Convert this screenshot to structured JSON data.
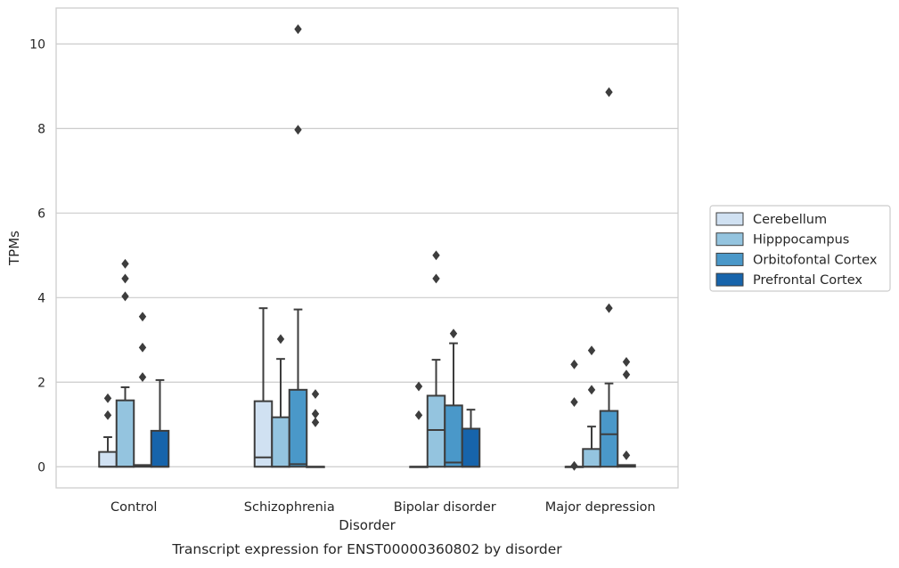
{
  "chart_data": {
    "type": "box",
    "xlabel": "Disorder",
    "ylabel": "TPMs",
    "caption": "Transcript expression for ENST00000360802 by disorder",
    "categories": [
      "Control",
      "Schizophrenia",
      "Bipolar disorder",
      "Major depression"
    ],
    "ylim": [
      -0.5,
      10.85
    ],
    "yticks": [
      0,
      2,
      4,
      6,
      8,
      10
    ],
    "grid": true,
    "legend_position": "right",
    "series": [
      {
        "name": "Cerebellum",
        "color": "#d0e1f2",
        "boxes": [
          {
            "whisker_low": 0,
            "q1": 0,
            "median": 0.0,
            "q3": 0.35,
            "whisker_high": 0.7,
            "outliers": [
              1.22,
              1.62
            ]
          },
          {
            "whisker_low": 0,
            "q1": 0,
            "median": 0.22,
            "q3": 1.55,
            "whisker_high": 3.75,
            "outliers": []
          },
          {
            "whisker_low": 0,
            "q1": 0,
            "median": 0.0,
            "q3": 0.0,
            "whisker_high": 0,
            "outliers": [
              1.22,
              1.9
            ]
          },
          {
            "whisker_low": 0,
            "q1": 0,
            "median": 0.0,
            "q3": 0.0,
            "whisker_high": 0,
            "outliers": [
              0.02,
              1.53,
              2.42
            ]
          }
        ]
      },
      {
        "name": "Hipppocampus",
        "color": "#94c4df",
        "boxes": [
          {
            "whisker_low": 0,
            "q1": 0,
            "median": 0.0,
            "q3": 1.57,
            "whisker_high": 1.88,
            "outliers": [
              4.03,
              4.45,
              4.8
            ]
          },
          {
            "whisker_low": 0,
            "q1": 0,
            "median": 0.0,
            "q3": 1.17,
            "whisker_high": 2.55,
            "outliers": [
              3.02
            ]
          },
          {
            "whisker_low": 0,
            "q1": 0,
            "median": 0.87,
            "q3": 1.68,
            "whisker_high": 2.53,
            "outliers": [
              4.45,
              5.0
            ]
          },
          {
            "whisker_low": 0,
            "q1": 0,
            "median": 0.0,
            "q3": 0.42,
            "whisker_high": 0.95,
            "outliers": [
              1.82,
              2.75
            ]
          }
        ]
      },
      {
        "name": "Orbitofontal Cortex",
        "color": "#4a98c9",
        "boxes": [
          {
            "whisker_low": 0,
            "q1": 0,
            "median": 0.02,
            "q3": 0.04,
            "whisker_high": 0.04,
            "outliers": [
              2.12,
              2.82,
              3.55
            ]
          },
          {
            "whisker_low": 0,
            "q1": 0,
            "median": 0.06,
            "q3": 1.82,
            "whisker_high": 3.72,
            "outliers": [
              7.97,
              10.35
            ]
          },
          {
            "whisker_low": 0,
            "q1": 0,
            "median": 0.1,
            "q3": 1.45,
            "whisker_high": 2.92,
            "outliers": [
              3.15
            ]
          },
          {
            "whisker_low": 0,
            "q1": 0,
            "median": 0.77,
            "q3": 1.32,
            "whisker_high": 1.97,
            "outliers": [
              3.75,
              8.86
            ]
          }
        ]
      },
      {
        "name": "Prefrontal Cortex",
        "color": "#1764ab",
        "boxes": [
          {
            "whisker_low": 0,
            "q1": 0,
            "median": 0.0,
            "q3": 0.85,
            "whisker_high": 2.05,
            "outliers": []
          },
          {
            "whisker_low": 0,
            "q1": 0,
            "median": 0.0,
            "q3": 0.0,
            "whisker_high": 0,
            "outliers": [
              1.05,
              1.25,
              1.72
            ]
          },
          {
            "whisker_low": 0,
            "q1": 0,
            "median": 0.0,
            "q3": 0.9,
            "whisker_high": 1.35,
            "outliers": []
          },
          {
            "whisker_low": 0,
            "q1": 0,
            "median": 0.02,
            "q3": 0.04,
            "whisker_high": 0.04,
            "outliers": [
              0.27,
              2.18,
              2.48
            ]
          }
        ]
      }
    ]
  }
}
